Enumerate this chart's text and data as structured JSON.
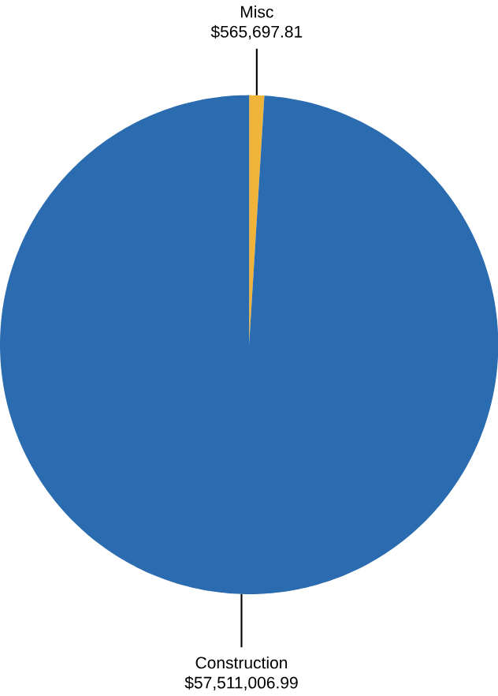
{
  "chart_data": {
    "type": "pie",
    "categories": [
      "Misc",
      "Construction"
    ],
    "values": [
      565697.81,
      57511006.99
    ],
    "colors": [
      "#f0b43a",
      "#2b6cb0"
    ],
    "value_labels": [
      "$565,697.81",
      "$57,511,006.99"
    ]
  }
}
